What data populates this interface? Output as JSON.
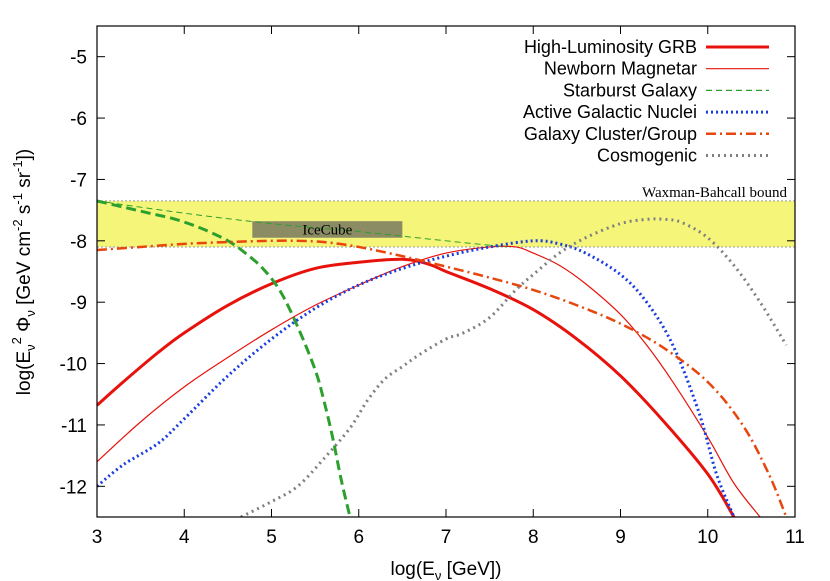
{
  "chart_data": {
    "type": "line",
    "title": "",
    "xlabel": "log(Eν [GeV])",
    "ylabel": "log(Eν² Φν [GeV cm⁻² s⁻¹ sr⁻¹])",
    "xlabel_parts": {
      "pre": "log(E",
      "sub": "ν",
      "post": " [GeV])"
    },
    "ylabel_parts": {
      "p1": "log(E",
      "sub1": "ν",
      "sup1": "2",
      "p2": " Φ",
      "sub2": "ν",
      "p3": " [GeV cm",
      "sup2": "-2",
      "p4": " s",
      "sup3": "-1",
      "p5": " sr",
      "sup4": "-1",
      "p6": "])"
    },
    "xlim": [
      3,
      11
    ],
    "ylim": [
      -12.5,
      -4.5
    ],
    "xticks": [
      3,
      4,
      5,
      6,
      7,
      8,
      9,
      10,
      11
    ],
    "yticks": [
      -12,
      -11,
      -10,
      -9,
      -8,
      -7,
      -6,
      -5
    ],
    "legend_position": "top-right",
    "bands": [
      {
        "name": "Waxman-Bahcall bound",
        "ymin": -8.1,
        "ymax": -7.35,
        "color": "#f5f57a"
      }
    ],
    "boxes": [
      {
        "name": "IceCube",
        "xmin": 4.78,
        "xmax": 6.5,
        "ymin": -7.95,
        "ymax": -7.68,
        "color": "#8c8c64"
      }
    ],
    "series": [
      {
        "name": "High-Luminosity GRB",
        "color": "#e8120c",
        "width": 3,
        "dash": "",
        "x": [
          3.0,
          3.3,
          3.7,
          4.0,
          4.5,
          5.0,
          5.5,
          6.0,
          6.5,
          6.8,
          7.0,
          7.5,
          8.0,
          8.5,
          9.0,
          9.5,
          10.0,
          10.3
        ],
        "y": [
          -10.68,
          -10.3,
          -9.82,
          -9.5,
          -9.05,
          -8.7,
          -8.45,
          -8.35,
          -8.3,
          -8.38,
          -8.5,
          -8.78,
          -9.12,
          -9.6,
          -10.2,
          -10.95,
          -11.8,
          -12.5
        ]
      },
      {
        "name": "Newborn Magnetar",
        "color": "#e8120c",
        "width": 1.2,
        "dash": "",
        "x": [
          3.0,
          3.5,
          4.0,
          4.5,
          5.0,
          5.5,
          6.0,
          6.5,
          7.0,
          7.5,
          7.8,
          8.0,
          8.3,
          8.6,
          9.0,
          9.3,
          9.6,
          10.0,
          10.3,
          10.6
        ],
        "y": [
          -11.6,
          -10.95,
          -10.38,
          -9.9,
          -9.45,
          -9.05,
          -8.72,
          -8.42,
          -8.2,
          -8.1,
          -8.1,
          -8.2,
          -8.4,
          -8.7,
          -9.2,
          -9.7,
          -10.3,
          -11.2,
          -11.95,
          -12.5
        ]
      },
      {
        "name": "Starburst Galaxy",
        "color": "#2ca02c",
        "width": 3,
        "dash": "10,5",
        "x": [
          3.0,
          3.3,
          3.6,
          3.9,
          4.2,
          4.5,
          4.7,
          4.9,
          5.1,
          5.3,
          5.5,
          5.6,
          5.7,
          5.8,
          5.9
        ],
        "y": [
          -7.35,
          -7.45,
          -7.55,
          -7.65,
          -7.8,
          -8.0,
          -8.2,
          -8.45,
          -8.82,
          -9.4,
          -10.1,
          -10.6,
          -11.2,
          -11.9,
          -12.5
        ]
      },
      {
        "name": "Starburst Galaxy (upper)",
        "color": "#2ca02c",
        "width": 1,
        "dash": "6,4",
        "x": [
          3.0,
          4.0,
          5.0,
          6.0,
          7.0,
          7.7
        ],
        "y": [
          -7.35,
          -7.55,
          -7.72,
          -7.85,
          -8.0,
          -8.1
        ]
      },
      {
        "name": "Active Galactic Nuclei",
        "color": "#1a3de0",
        "width": 3,
        "dash": "2,3",
        "x": [
          3.0,
          3.3,
          3.7,
          4.0,
          4.5,
          5.0,
          5.5,
          6.0,
          6.5,
          7.0,
          7.5,
          8.0,
          8.3,
          8.6,
          9.0,
          9.3,
          9.6,
          9.9,
          10.1,
          10.3
        ],
        "y": [
          -12.0,
          -11.65,
          -11.3,
          -10.9,
          -10.2,
          -9.6,
          -9.1,
          -8.72,
          -8.45,
          -8.25,
          -8.1,
          -8.0,
          -8.05,
          -8.2,
          -8.55,
          -9.0,
          -9.7,
          -10.8,
          -11.8,
          -12.5
        ]
      },
      {
        "name": "Galaxy Cluster/Group",
        "color": "#e8460c",
        "width": 2.5,
        "dash": "10,4,2,4",
        "x": [
          3.0,
          3.5,
          4.0,
          4.5,
          5.0,
          5.3,
          5.6,
          6.0,
          6.5,
          7.0,
          7.5,
          8.0,
          8.5,
          9.0,
          9.5,
          10.0,
          10.4,
          10.7,
          10.9
        ],
        "y": [
          -8.15,
          -8.1,
          -8.05,
          -8.02,
          -8.0,
          -8.0,
          -8.02,
          -8.1,
          -8.25,
          -8.42,
          -8.6,
          -8.8,
          -9.05,
          -9.35,
          -9.75,
          -10.3,
          -11.0,
          -11.8,
          -12.5
        ]
      },
      {
        "name": "Cosmogenic",
        "color": "#808080",
        "width": 3,
        "dash": "2,4",
        "x": [
          4.65,
          5.0,
          5.3,
          5.6,
          5.9,
          6.1,
          6.3,
          6.5,
          6.7,
          7.0,
          7.2,
          7.5,
          7.8,
          8.0,
          8.3,
          8.6,
          9.0,
          9.3,
          9.5,
          9.7,
          10.0,
          10.3,
          10.6,
          10.9
        ],
        "y": [
          -12.5,
          -12.25,
          -12.0,
          -11.55,
          -11.05,
          -10.6,
          -10.25,
          -10.05,
          -9.85,
          -9.6,
          -9.5,
          -9.25,
          -8.8,
          -8.55,
          -8.2,
          -7.95,
          -7.72,
          -7.65,
          -7.65,
          -7.7,
          -7.95,
          -8.4,
          -9.0,
          -9.7
        ]
      }
    ],
    "legend": [
      {
        "label": "High-Luminosity GRB",
        "color": "#e8120c",
        "width": 3,
        "dash": ""
      },
      {
        "label": "Newborn Magnetar",
        "color": "#e8120c",
        "width": 1.2,
        "dash": ""
      },
      {
        "label": "Starburst Galaxy",
        "color": "#2ca02c",
        "width": 1.2,
        "dash": "6,4"
      },
      {
        "label": "Active Galactic Nuclei",
        "color": "#1a3de0",
        "width": 3,
        "dash": "2,3"
      },
      {
        "label": "Galaxy Cluster/Group",
        "color": "#e8460c",
        "width": 2.5,
        "dash": "10,4,2,4"
      },
      {
        "label": "Cosmogenic",
        "color": "#808080",
        "width": 3,
        "dash": "2,4"
      }
    ],
    "annotations": {
      "waxman_bahcall": "Waxman-Bahcall bound",
      "icecube": "IceCube"
    }
  }
}
